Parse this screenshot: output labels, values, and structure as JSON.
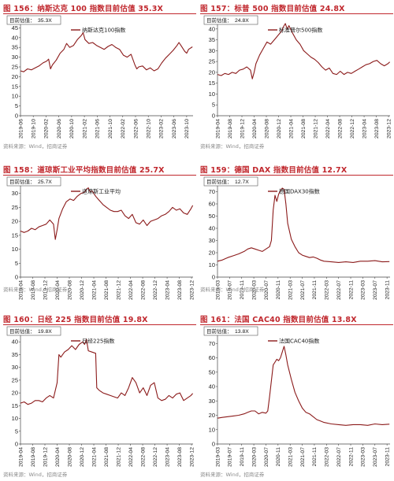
{
  "source_text": "资料来源：Wind，招商证券",
  "chart_data": [
    {
      "type": "line",
      "title": "图 156：纳斯达克 100 指数目前估值 35.3X",
      "annotation_label": "目前估值：",
      "annotation_value": "35.3X",
      "legend": "纳斯达克100指数",
      "ylim": [
        0,
        50
      ],
      "yticks": [
        0,
        5,
        10,
        15,
        20,
        25,
        30,
        35,
        40,
        45,
        50
      ],
      "xlim": [
        2019.417,
        2023.917
      ],
      "xticks": [
        "2019-06",
        "2019-10",
        "2020-02",
        "2020-06",
        "2020-10",
        "2021-02",
        "2021-06",
        "2021-10",
        "2022-02",
        "2022-06",
        "2022-10",
        "2023-02",
        "2023-06",
        "2023-10"
      ],
      "color": "#8b1a1a",
      "series": [
        {
          "x": [
            2019.42,
            2019.5,
            2019.6,
            2019.7,
            2019.8,
            2019.9,
            2020.0,
            2020.1,
            2020.15,
            2020.2,
            2020.25,
            2020.35,
            2020.45,
            2020.55,
            2020.62,
            2020.7,
            2020.8,
            2020.9,
            2021.0,
            2021.05,
            2021.1,
            2021.2,
            2021.3,
            2021.4,
            2021.5,
            2021.6,
            2021.7,
            2021.8,
            2021.9,
            2022.0,
            2022.1,
            2022.2,
            2022.3,
            2022.4,
            2022.45,
            2022.5,
            2022.6,
            2022.7,
            2022.8,
            2022.9,
            2023.0,
            2023.1,
            2023.2,
            2023.3,
            2023.4,
            2023.5,
            2023.55,
            2023.6,
            2023.7,
            2023.75,
            2023.8,
            2023.9
          ],
          "y": [
            23,
            22.5,
            24,
            23.5,
            24.5,
            25.5,
            27,
            28,
            29,
            24,
            26,
            28.5,
            32,
            34,
            37,
            35,
            36,
            39,
            41,
            42.5,
            39,
            37,
            37.5,
            36,
            35,
            34,
            35.5,
            36.5,
            35,
            34,
            31,
            30,
            31.5,
            26,
            24,
            25,
            25.5,
            23.5,
            24.5,
            23,
            24,
            27,
            29.5,
            31.5,
            33.5,
            36,
            37.5,
            36,
            33,
            32,
            34,
            35.3
          ]
        }
      ]
    },
    {
      "type": "line",
      "title": "图 157：标普 500 指数目前估值 24.8X",
      "annotation_label": "目前估值：",
      "annotation_value": "24.8X",
      "legend": "标准普尔500指数",
      "ylim": [
        0,
        45
      ],
      "yticks": [
        0,
        5,
        10,
        15,
        20,
        25,
        30,
        35,
        40,
        45
      ],
      "xlim": [
        2019.25,
        2023.958
      ],
      "xticks": [
        "2019-04",
        "2019-08",
        "2019-12",
        "2020-04",
        "2020-08",
        "2020-12",
        "2021-04",
        "2021-08",
        "2021-12",
        "2022-04",
        "2022-08",
        "2022-12",
        "2023-04",
        "2023-08",
        "2023-12"
      ],
      "color": "#8b1a1a",
      "series": [
        {
          "x": [
            2019.25,
            2019.35,
            2019.45,
            2019.55,
            2019.65,
            2019.75,
            2019.85,
            2019.95,
            2020.05,
            2020.15,
            2020.2,
            2020.25,
            2020.3,
            2020.4,
            2020.5,
            2020.6,
            2020.7,
            2020.8,
            2020.9,
            2021.0,
            2021.05,
            2021.1,
            2021.15,
            2021.2,
            2021.3,
            2021.4,
            2021.5,
            2021.6,
            2021.7,
            2021.8,
            2021.9,
            2022.0,
            2022.1,
            2022.2,
            2022.3,
            2022.4,
            2022.5,
            2022.6,
            2022.7,
            2022.8,
            2022.9,
            2023.0,
            2023.1,
            2023.2,
            2023.3,
            2023.4,
            2023.5,
            2023.6,
            2023.7,
            2023.8,
            2023.9,
            2023.95
          ],
          "y": [
            19,
            18.5,
            19.5,
            19,
            20,
            19.5,
            21,
            21.5,
            22.5,
            21,
            17,
            20,
            24,
            28,
            31,
            34,
            33,
            35,
            37,
            39,
            41,
            42.5,
            40,
            41.5,
            38,
            35,
            33,
            30,
            28.5,
            27,
            26,
            24.5,
            22.5,
            21,
            22,
            19.5,
            19,
            20.5,
            19,
            20,
            19.5,
            20.5,
            21.5,
            22.5,
            23.5,
            24,
            25,
            25.5,
            24,
            23,
            24,
            24.8
          ]
        }
      ]
    },
    {
      "type": "line",
      "title": "图 158：道琼斯工业平均指数目前估值 25.7X",
      "annotation_label": "目前估值：",
      "annotation_value": "25.7X",
      "legend": "道琼斯工业平均",
      "ylim": [
        0,
        35
      ],
      "yticks": [
        0,
        5,
        10,
        15,
        20,
        25,
        30,
        35
      ],
      "xlim": [
        2019.25,
        2023.958
      ],
      "xticks": [
        "2019-04",
        "2019-08",
        "2019-12",
        "2020-04",
        "2020-08",
        "2020-12",
        "2021-04",
        "2021-08",
        "2021-12",
        "2022-04",
        "2022-08",
        "2022-12",
        "2023-04",
        "2023-08",
        "2023-12"
      ],
      "color": "#8b1a1a",
      "series": [
        {
          "x": [
            2019.25,
            2019.35,
            2019.45,
            2019.55,
            2019.65,
            2019.75,
            2019.85,
            2019.95,
            2020.05,
            2020.15,
            2020.2,
            2020.25,
            2020.3,
            2020.4,
            2020.5,
            2020.6,
            2020.7,
            2020.8,
            2020.9,
            2021.0,
            2021.05,
            2021.1,
            2021.15,
            2021.2,
            2021.3,
            2021.4,
            2021.5,
            2021.6,
            2021.7,
            2021.8,
            2021.9,
            2022.0,
            2022.1,
            2022.2,
            2022.3,
            2022.4,
            2022.5,
            2022.6,
            2022.7,
            2022.8,
            2022.9,
            2023.0,
            2023.1,
            2023.2,
            2023.3,
            2023.4,
            2023.5,
            2023.6,
            2023.7,
            2023.8,
            2023.9,
            2023.95
          ],
          "y": [
            16.5,
            16,
            16.5,
            17.5,
            17,
            18,
            18.5,
            19,
            20.5,
            19,
            13.5,
            17,
            21,
            24.5,
            27,
            28,
            27.5,
            29,
            30,
            30.5,
            31.5,
            32,
            30.5,
            31,
            29,
            27.5,
            26,
            25,
            24,
            23.5,
            23.5,
            24,
            22,
            21,
            22.5,
            19.5,
            19,
            20.5,
            18.5,
            20,
            20.5,
            21,
            22,
            22.5,
            23.5,
            25,
            24,
            24.5,
            23,
            22.5,
            24.5,
            25.7
          ]
        }
      ]
    },
    {
      "type": "line",
      "title": "图 159：德国 DAX 指数目前估值 12.7X",
      "annotation_label": "目前估值：",
      "annotation_value": "12.7X",
      "legend": "德国DAX30指数",
      "ylim": [
        0,
        80
      ],
      "yticks": [
        0,
        10,
        20,
        30,
        40,
        50,
        60,
        70,
        80
      ],
      "xlim": [
        2019.167,
        2023.917
      ],
      "xticks": [
        "2019-03",
        "2019-07",
        "2019-11",
        "2020-03",
        "2020-07",
        "2020-11",
        "2021-03",
        "2021-07",
        "2021-11",
        "2022-03",
        "2022-07",
        "2022-11",
        "2023-03",
        "2023-07",
        "2023-11"
      ],
      "color": "#8b1a1a",
      "series": [
        {
          "x": [
            2019.17,
            2019.3,
            2019.45,
            2019.6,
            2019.75,
            2019.9,
            2020.0,
            2020.1,
            2020.2,
            2020.3,
            2020.4,
            2020.5,
            2020.6,
            2020.65,
            2020.7,
            2020.75,
            2020.8,
            2020.85,
            2020.9,
            2020.95,
            2021.0,
            2021.05,
            2021.1,
            2021.2,
            2021.3,
            2021.4,
            2021.5,
            2021.6,
            2021.7,
            2021.8,
            2021.9,
            2022.0,
            2022.1,
            2022.3,
            2022.5,
            2022.7,
            2022.9,
            2023.1,
            2023.3,
            2023.5,
            2023.7,
            2023.9
          ],
          "y": [
            13,
            14,
            16,
            17.5,
            19,
            21,
            23,
            24,
            23,
            22,
            21,
            23,
            25,
            30,
            55,
            67,
            62,
            68,
            71,
            73,
            72,
            60,
            44,
            31,
            25,
            20,
            18,
            17,
            16,
            16.5,
            15.5,
            14,
            13,
            12.5,
            12,
            12.5,
            12,
            13,
            13,
            13.5,
            12.5,
            12.7
          ]
        }
      ]
    },
    {
      "type": "line",
      "title": "图 160：日经 225 指数目前估值 19.8X",
      "annotation_label": "目前估值：",
      "annotation_value": "19.8X",
      "legend": "日经225指数",
      "ylim": [
        0,
        45
      ],
      "yticks": [
        0,
        5,
        10,
        15,
        20,
        25,
        30,
        35,
        40,
        45
      ],
      "xlim": [
        2019.25,
        2023.958
      ],
      "xticks": [
        "2019-04",
        "2019-08",
        "2019-12",
        "2020-04",
        "2020-08",
        "2020-12",
        "2021-04",
        "2021-08",
        "2021-12",
        "2022-04",
        "2022-08",
        "2022-12",
        "2023-04",
        "2023-08",
        "2023-12"
      ],
      "color": "#8b1a1a",
      "series": [
        {
          "x": [
            2019.25,
            2019.35,
            2019.45,
            2019.55,
            2019.65,
            2019.75,
            2019.85,
            2019.95,
            2020.05,
            2020.15,
            2020.25,
            2020.3,
            2020.35,
            2020.45,
            2020.55,
            2020.65,
            2020.75,
            2020.85,
            2020.95,
            2021.0,
            2021.05,
            2021.1,
            2021.2,
            2021.3,
            2021.33,
            2021.4,
            2021.5,
            2021.6,
            2021.7,
            2021.8,
            2021.9,
            2022.0,
            2022.1,
            2022.2,
            2022.3,
            2022.4,
            2022.5,
            2022.6,
            2022.7,
            2022.8,
            2022.9,
            2023.0,
            2023.1,
            2023.2,
            2023.3,
            2023.4,
            2023.5,
            2023.6,
            2023.7,
            2023.8,
            2023.9,
            2023.95
          ],
          "y": [
            16,
            16.5,
            15.5,
            16,
            17,
            17,
            16.5,
            18,
            19,
            18,
            24,
            35,
            34,
            36,
            37,
            38.5,
            37,
            39,
            40,
            39,
            41,
            36.5,
            36,
            35.5,
            22,
            21,
            20,
            19.5,
            19,
            18.5,
            18,
            20,
            19,
            22,
            26,
            24,
            20,
            22,
            19,
            23,
            24,
            18,
            17,
            17.5,
            19,
            18,
            19.5,
            20,
            17,
            18,
            19,
            19.8
          ]
        }
      ]
    },
    {
      "type": "line",
      "title": "图 161：法国 CAC40 指数目前估值 13.8X",
      "annotation_label": "目前估值：",
      "annotation_value": "13.8X",
      "legend": "法国CAC40指数",
      "ylim": [
        0,
        80
      ],
      "yticks": [
        0,
        10,
        20,
        30,
        40,
        50,
        60,
        70,
        80
      ],
      "xlim": [
        2019.167,
        2023.917
      ],
      "xticks": [
        "2019-03",
        "2019-07",
        "2019-11",
        "2020-03",
        "2020-07",
        "2020-11",
        "2021-03",
        "2021-07",
        "2021-11",
        "2022-03",
        "2022-07",
        "2022-11",
        "2023-03",
        "2023-07",
        "2023-11"
      ],
      "color": "#8b1a1a",
      "series": [
        {
          "x": [
            2019.17,
            2019.3,
            2019.45,
            2019.6,
            2019.75,
            2019.9,
            2020.0,
            2020.1,
            2020.2,
            2020.3,
            2020.4,
            2020.5,
            2020.55,
            2020.6,
            2020.7,
            2020.75,
            2020.8,
            2020.85,
            2020.9,
            2020.95,
            2021.0,
            2021.05,
            2021.1,
            2021.2,
            2021.3,
            2021.4,
            2021.5,
            2021.6,
            2021.7,
            2021.8,
            2021.9,
            2022.0,
            2022.1,
            2022.3,
            2022.5,
            2022.7,
            2022.9,
            2023.1,
            2023.3,
            2023.5,
            2023.7,
            2023.9
          ],
          "y": [
            18,
            18.5,
            19,
            19.5,
            20,
            21,
            22,
            23,
            23,
            21,
            22,
            21.5,
            23,
            33,
            55,
            57,
            59,
            58,
            60,
            64,
            68,
            62,
            55,
            45,
            36,
            30,
            25,
            22,
            21,
            19,
            17,
            16,
            15,
            14,
            13.5,
            13,
            13.5,
            13.5,
            13,
            14,
            13.5,
            13.8
          ]
        }
      ]
    }
  ]
}
